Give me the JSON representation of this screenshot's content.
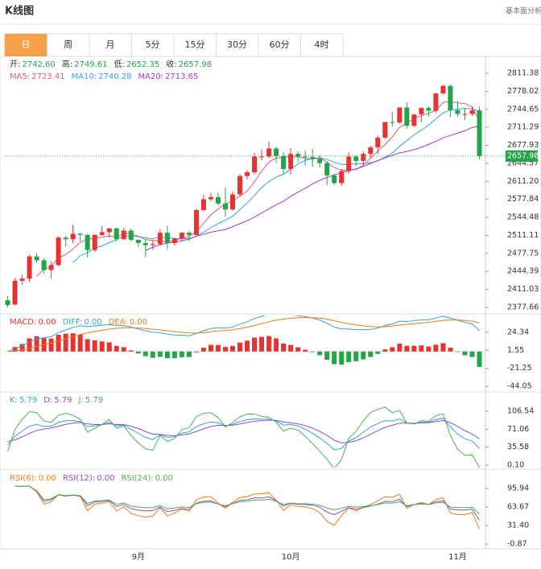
{
  "header": {
    "title": "K线图",
    "link": "基本面分析"
  },
  "tabs": [
    "日",
    "周",
    "月",
    "5分",
    "15分",
    "30分",
    "60分",
    "4时"
  ],
  "chart_data": [
    {
      "type": "candlestick",
      "up_color": "#e8322f",
      "down_color": "#22a447",
      "info": [
        {
          "label": "开:",
          "value": "2742.60"
        },
        {
          "label": "高:",
          "value": "2749.61"
        },
        {
          "label": "低:",
          "value": "2652.35"
        },
        {
          "label": "收:",
          "value": "2657.98"
        }
      ],
      "ma": [
        {
          "name": "MA5:",
          "value": "2723.41",
          "color": "#e0568a"
        },
        {
          "name": "MA10:",
          "value": "2740.28",
          "color": "#2fa3de"
        },
        {
          "name": "MA20:",
          "value": "2713.65",
          "color": "#a43bbd"
        }
      ],
      "categories": [
        null,
        null,
        null,
        null,
        null,
        null,
        null,
        null,
        null,
        null,
        null,
        null,
        null,
        null,
        null,
        null,
        null,
        null,
        "9月",
        null,
        null,
        null,
        null,
        null,
        null,
        null,
        null,
        null,
        null,
        null,
        null,
        null,
        null,
        null,
        null,
        null,
        null,
        null,
        null,
        "10月",
        null,
        null,
        null,
        null,
        null,
        null,
        null,
        null,
        null,
        null,
        null,
        null,
        null,
        null,
        null,
        null,
        null,
        null,
        null,
        null,
        null,
        null,
        "11月",
        null,
        null,
        null
      ],
      "ohlc": [
        [
          2391,
          2398,
          2378,
          2382
        ],
        [
          2383,
          2432,
          2382,
          2427
        ],
        [
          2427,
          2438,
          2420,
          2431
        ],
        [
          2431,
          2475,
          2425,
          2472
        ],
        [
          2472,
          2478,
          2460,
          2465
        ],
        [
          2465,
          2469,
          2440,
          2447
        ],
        [
          2447,
          2463,
          2431,
          2456
        ],
        [
          2456,
          2509,
          2454,
          2507
        ],
        [
          2507,
          2510,
          2490,
          2504
        ],
        [
          2504,
          2531,
          2497,
          2514
        ],
        [
          2514,
          2516,
          2500,
          2512
        ],
        [
          2512,
          2514,
          2470,
          2484
        ],
        [
          2484,
          2513,
          2480,
          2512
        ],
        [
          2512,
          2528,
          2510,
          2517
        ],
        [
          2517,
          2525,
          2507,
          2524
        ],
        [
          2524,
          2526,
          2500,
          2504
        ],
        [
          2504,
          2525,
          2502,
          2520
        ],
        [
          2520,
          2524,
          2500,
          2503
        ],
        [
          2503,
          2503,
          2490,
          2497
        ],
        [
          2497,
          2503,
          2471,
          2493
        ],
        [
          2493,
          2503,
          2485,
          2495
        ],
        [
          2495,
          2523,
          2492,
          2516
        ],
        [
          2516,
          2529,
          2485,
          2497
        ],
        [
          2497,
          2507,
          2492,
          2505
        ],
        [
          2505,
          2517,
          2500,
          2516
        ],
        [
          2516,
          2519,
          2500,
          2512
        ],
        [
          2512,
          2560,
          2511,
          2558
        ],
        [
          2558,
          2586,
          2556,
          2578
        ],
        [
          2578,
          2590,
          2574,
          2582
        ],
        [
          2582,
          2590,
          2566,
          2570
        ],
        [
          2570,
          2600,
          2546,
          2559
        ],
        [
          2559,
          2593,
          2557,
          2587
        ],
        [
          2587,
          2625,
          2584,
          2621
        ],
        [
          2621,
          2632,
          2615,
          2628
        ],
        [
          2628,
          2664,
          2624,
          2657
        ],
        [
          2657,
          2670,
          2650,
          2657
        ],
        [
          2657,
          2685,
          2654,
          2672
        ],
        [
          2672,
          2675,
          2645,
          2658
        ],
        [
          2658,
          2665,
          2624,
          2634
        ],
        [
          2634,
          2673,
          2624,
          2662
        ],
        [
          2662,
          2667,
          2647,
          2657
        ],
        [
          2657,
          2668,
          2640,
          2656
        ],
        [
          2656,
          2671,
          2638,
          2653
        ],
        [
          2653,
          2660,
          2637,
          2645
        ],
        [
          2645,
          2649,
          2604,
          2622
        ],
        [
          2622,
          2625,
          2604,
          2608
        ],
        [
          2608,
          2634,
          2603,
          2630
        ],
        [
          2630,
          2665,
          2625,
          2657
        ],
        [
          2657,
          2660,
          2640,
          2649
        ],
        [
          2649,
          2667,
          2640,
          2662
        ],
        [
          2662,
          2677,
          2654,
          2674
        ],
        [
          2674,
          2696,
          2662,
          2692
        ],
        [
          2692,
          2721,
          2690,
          2721
        ],
        [
          2721,
          2740,
          2713,
          2720
        ],
        [
          2720,
          2748,
          2718,
          2748
        ],
        [
          2748,
          2758,
          2709,
          2714
        ],
        [
          2714,
          2736,
          2712,
          2735
        ],
        [
          2735,
          2748,
          2721,
          2747
        ],
        [
          2747,
          2750,
          2731,
          2742
        ],
        [
          2742,
          2774,
          2738,
          2774
        ],
        [
          2774,
          2790,
          2772,
          2788
        ],
        [
          2788,
          2790,
          2730,
          2743
        ],
        [
          2743,
          2760,
          2731,
          2736
        ],
        [
          2736,
          2746,
          2725,
          2736
        ],
        [
          2736,
          2750,
          2732,
          2742.6
        ],
        [
          2742.6,
          2749.61,
          2652.35,
          2657.98
        ]
      ],
      "ylim": [
        2368.72,
        2839.7
      ],
      "yticks": [
        2811.38,
        2778.02,
        2744.65,
        2711.29,
        2677.93,
        2644.57,
        {
          "value": 2611.2,
          "label": "2611.20"
        },
        2577.84,
        2544.48,
        2511.11,
        2477.75,
        2444.39,
        2411.03,
        2377.66
      ]
    },
    {
      "type": "macd",
      "legend": [
        {
          "name": "MACD:",
          "value": "0.00",
          "color": "#e8322f"
        },
        {
          "name": "DIFF:",
          "value": "0.00",
          "color": "#2fa3de"
        },
        {
          "name": "DEA:",
          "value": "0.00",
          "color": "#f07c12"
        }
      ],
      "ylim": [
        -49.12,
        45.61
      ],
      "yticks": [
        24.34,
        1.55,
        -21.25,
        -44.05
      ]
    },
    {
      "type": "kdj",
      "legend": [
        {
          "name": "K:",
          "value": "5.79",
          "color": "#2fa3de"
        },
        {
          "name": "D:",
          "value": "5.79",
          "color": "#8a4fc7"
        },
        {
          "name": "J:",
          "value": "5.79",
          "color": "#4caf50"
        }
      ],
      "ylim": [
        -4.67,
        141.5
      ],
      "yticks": [
        106.54,
        71.06,
        35.58,
        {
          "value": 0.1,
          "label": "0.10"
        }
      ]
    },
    {
      "type": "rsi",
      "legend": [
        {
          "name": "RSI(6):",
          "value": "0.00",
          "color": "#f07c12"
        },
        {
          "name": "RSI(12):",
          "value": "0.00",
          "color": "#8a4fc7"
        },
        {
          "name": "RSI(24):",
          "value": "0.00",
          "color": "#4caf50"
        }
      ],
      "ylim": [
        -6.48,
        126.8
      ],
      "yticks": [
        95.94,
        63.67,
        {
          "value": 31.4,
          "label": "31.40"
        },
        -0.87
      ]
    }
  ]
}
